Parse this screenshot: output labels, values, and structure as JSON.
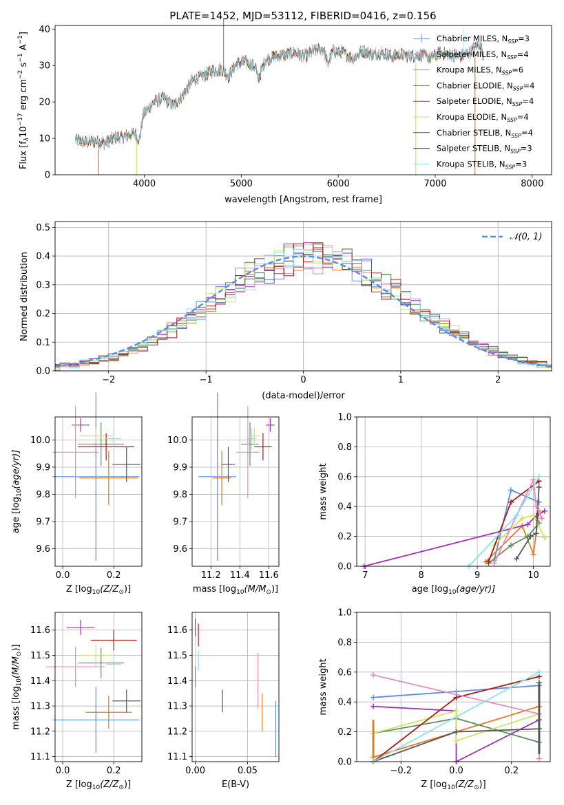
{
  "figure": {
    "title": "PLATE=1452, MJD=53112, FIBERID=0416, z=0.156"
  },
  "palette": [
    "#5b8ee0",
    "#e07b28",
    "#5e8e5b",
    "#9b32b4",
    "#cde468",
    "#555555",
    "#a81a12",
    "#e58cbe",
    "#8be2e6"
  ],
  "models": [
    {
      "label": "Chabrier MILES, N",
      "sub": "SSP",
      "eq": "=3",
      "color": "#5b8ee0"
    },
    {
      "label": "Salpeter MILES, N",
      "sub": "SSP",
      "eq": "=4",
      "color": "#e58cbe"
    },
    {
      "label": "Kroupa MILES, N",
      "sub": "SSP",
      "eq": "=6",
      "color": "#e07b28"
    },
    {
      "label": "Chabrier ELODIE, N",
      "sub": "SSP",
      "eq": "=4",
      "color": "#5e8e5b"
    },
    {
      "label": "Salpeter ELODIE, N",
      "sub": "SSP",
      "eq": "=4",
      "color": "#9b32b4"
    },
    {
      "label": "Kroupa ELODIE, N",
      "sub": "SSP",
      "eq": "=4",
      "color": "#cde468"
    },
    {
      "label": "Chabrier STELIB, N",
      "sub": "SSP",
      "eq": "=4",
      "color": "#555555"
    },
    {
      "label": "Salpeter STELIB, N",
      "sub": "SSP",
      "eq": "=3",
      "color": "#a81a12"
    },
    {
      "label": "Kroupa STELIB, N",
      "sub": "SSP",
      "eq": "=3",
      "color": "#8be2e6"
    }
  ],
  "chart_data": [
    {
      "id": "spectrum",
      "type": "line",
      "xlabel": "wavelength [Angstrom, rest frame]",
      "ylabel": "Flux [f",
      "ylabel_rest": "10",
      "ylabel_exp": "−17",
      "ylabel_tail": " erg cm",
      "ylabel_exp2": "−2",
      "ylabel_tail2": " s",
      "ylabel_exp3": "−1",
      "ylabel_tail3": " A",
      "ylabel_exp4": "−1",
      "ylabel_end": "]",
      "xlim": [
        3080,
        8200
      ],
      "ylim": [
        0,
        41
      ],
      "xticks": [
        "4000",
        "5000",
        "6000",
        "7000",
        "8000"
      ],
      "xtick_values": [
        4000,
        5000,
        6000,
        7000,
        8000
      ],
      "yticks": [
        "0",
        "10",
        "20",
        "30",
        "40"
      ],
      "ytick_values": [
        0,
        10,
        20,
        30,
        40
      ],
      "grid": false,
      "legend_position": "top-right",
      "envelope": [
        [
          3290,
          9.6
        ],
        [
          3400,
          9.0
        ],
        [
          3500,
          9.2
        ],
        [
          3600,
          8.8
        ],
        [
          3700,
          10.2
        ],
        [
          3800,
          10.5
        ],
        [
          3900,
          11.5
        ],
        [
          3950,
          9.5
        ],
        [
          3990,
          16.5
        ],
        [
          4100,
          20.0
        ],
        [
          4200,
          21.0
        ],
        [
          4300,
          19.0
        ],
        [
          4400,
          22.0
        ],
        [
          4500,
          26.0
        ],
        [
          4600,
          27.0
        ],
        [
          4700,
          28.5
        ],
        [
          4800,
          29.0
        ],
        [
          4870,
          27.0
        ],
        [
          4950,
          30.5
        ],
        [
          5050,
          31.0
        ],
        [
          5150,
          29.5
        ],
        [
          5170,
          26.0
        ],
        [
          5250,
          31.5
        ],
        [
          5350,
          32.5
        ],
        [
          5450,
          33.0
        ],
        [
          5550,
          33.5
        ],
        [
          5650,
          32.5
        ],
        [
          5750,
          34.0
        ],
        [
          5850,
          34.5
        ],
        [
          5890,
          30.5
        ],
        [
          5950,
          34.0
        ],
        [
          6050,
          33.5
        ],
        [
          6150,
          32.0
        ],
        [
          6250,
          34.0
        ],
        [
          6350,
          33.0
        ],
        [
          6450,
          33.5
        ],
        [
          6550,
          32.5
        ],
        [
          6650,
          33.0
        ],
        [
          6750,
          32.5
        ],
        [
          6850,
          33.0
        ],
        [
          6950,
          32.0
        ],
        [
          7050,
          33.5
        ],
        [
          7150,
          33.0
        ],
        [
          7250,
          32.5
        ],
        [
          7350,
          33.5
        ],
        [
          7450,
          36.0
        ],
        [
          7500,
          33.0
        ]
      ],
      "dropouts": [
        {
          "x": 3530,
          "to": 0,
          "color": "#e07b28"
        },
        {
          "x": 3920,
          "to": 0,
          "color": "#cde468"
        },
        {
          "x": 6800,
          "to": 0,
          "color": "#cde468"
        },
        {
          "x": 7410,
          "to": 0,
          "color": "#e07b28"
        }
      ]
    },
    {
      "id": "residuals",
      "type": "histogram",
      "xlabel": "(data-model)/error",
      "ylabel": "Normed distribution",
      "xlim": [
        -2.55,
        2.55
      ],
      "ylim": [
        0,
        0.52
      ],
      "xticks": [
        "−2",
        "−1",
        "0",
        "1",
        "2"
      ],
      "xtick_values": [
        -2,
        -1,
        0,
        1,
        2
      ],
      "yticks": [
        "0.0",
        "0.1",
        "0.2",
        "0.3",
        "0.4",
        "0.5"
      ],
      "ytick_values": [
        0,
        0.1,
        0.2,
        0.3,
        0.4,
        0.5
      ],
      "grid": true,
      "legend_position": "top-right",
      "reference_label": "𝒩(0, 1)",
      "reference_color": "#5b8ee0",
      "bin_width": 0.1
    },
    {
      "id": "age-vs-Z",
      "type": "errorbar",
      "xlabel": "Z [log",
      "xlabel_sub": "10",
      "xlabel_rest": "(Z/Z",
      "xlabel_sub2": "⊙",
      "xlabel_end": ")]",
      "ylabel": "age  [log",
      "ylabel_sub": "10",
      "ylabel_rest": "(age/yr)]",
      "xlim": [
        -0.03,
        0.31
      ],
      "ylim": [
        9.535,
        10.085
      ],
      "xticks": [
        "0.0",
        "0.2"
      ],
      "xtick_values": [
        0.0,
        0.2
      ],
      "yticks": [
        "9.6",
        "9.7",
        "9.8",
        "9.9",
        "10.0"
      ],
      "ytick_values": [
        9.6,
        9.7,
        9.8,
        9.9,
        10.0
      ],
      "grid": true,
      "points": [
        {
          "x": 0.13,
          "xerr": 0.17,
          "y": 9.865,
          "yerr": 0.31,
          "color": "#5b8ee0"
        },
        {
          "x": 0.18,
          "xerr": 0.115,
          "y": 9.86,
          "yerr": 0.1,
          "color": "#e07b28"
        },
        {
          "x": 0.15,
          "xerr": 0.09,
          "y": 9.985,
          "yerr": 0.08,
          "color": "#5e8e5b"
        },
        {
          "x": 0.07,
          "xerr": 0.035,
          "y": 10.055,
          "yerr": 0.025,
          "color": "#9b32b4"
        },
        {
          "x": 0.13,
          "xerr": 0.065,
          "y": 10.015,
          "yerr": 0.03,
          "color": "#cde468"
        },
        {
          "x": 0.25,
          "xerr": 0.055,
          "y": 9.91,
          "yerr": 0.065,
          "color": "#555555"
        },
        {
          "x": 0.17,
          "xerr": 0.11,
          "y": 9.975,
          "yerr": 0.05,
          "color": "#a81a12"
        },
        {
          "x": 0.05,
          "xerr": 0.09,
          "y": 9.955,
          "yerr": 0.17,
          "color": "#e58cbe"
        },
        {
          "x": 0.2,
          "xerr": 0.03,
          "y": 10.005,
          "yerr": 0.03,
          "color": "#8be2e6"
        }
      ]
    },
    {
      "id": "age-vs-mass",
      "type": "errorbar",
      "xlabel": "mass [log",
      "xlabel_sub": "10",
      "xlabel_rest": "(M/M",
      "xlabel_sub2": "⊙",
      "xlabel_end": ")]",
      "xlim": [
        11.07,
        11.67
      ],
      "ylim": [
        9.535,
        10.085
      ],
      "xticks": [
        "11.2",
        "11.4",
        "11.6"
      ],
      "xtick_values": [
        11.2,
        11.4,
        11.6
      ],
      "yticks": [
        "9.6",
        "9.7",
        "9.8",
        "9.9",
        "10.0"
      ],
      "ytick_values": [
        9.6,
        9.7,
        9.8,
        9.9,
        10.0
      ],
      "grid": true,
      "points": [
        {
          "x": 11.245,
          "xerr": 0.13,
          "y": 9.865,
          "yerr": 0.31,
          "color": "#5b8ee0"
        },
        {
          "x": 11.275,
          "xerr": 0.065,
          "y": 9.86,
          "yerr": 0.1,
          "color": "#e07b28"
        },
        {
          "x": 11.47,
          "xerr": 0.06,
          "y": 9.985,
          "yerr": 0.08,
          "color": "#5e8e5b"
        },
        {
          "x": 11.61,
          "xerr": 0.03,
          "y": 10.055,
          "yerr": 0.025,
          "color": "#9b32b4"
        },
        {
          "x": 11.5,
          "xerr": 0.04,
          "y": 10.015,
          "yerr": 0.03,
          "color": "#cde468"
        },
        {
          "x": 11.32,
          "xerr": 0.045,
          "y": 9.91,
          "yerr": 0.065,
          "color": "#555555"
        },
        {
          "x": 11.56,
          "xerr": 0.06,
          "y": 9.975,
          "yerr": 0.05,
          "color": "#a81a12"
        },
        {
          "x": 11.455,
          "xerr": 0.08,
          "y": 9.955,
          "yerr": 0.17,
          "color": "#e58cbe"
        },
        {
          "x": 11.48,
          "xerr": 0.03,
          "y": 10.005,
          "yerr": 0.04,
          "color": "#8be2e6"
        }
      ]
    },
    {
      "id": "weight-vs-age",
      "type": "line",
      "xlabel": "age  [log",
      "xlabel_sub": "10",
      "xlabel_rest": "(age/yr)]",
      "ylabel": "mass weight",
      "xlim": [
        6.85,
        10.3
      ],
      "ylim": [
        0,
        1.0
      ],
      "xticks": [
        "7",
        "8",
        "9",
        "10"
      ],
      "xtick_values": [
        7,
        8,
        9,
        10
      ],
      "yticks": [
        "0.0",
        "0.2",
        "0.4",
        "0.6",
        "0.8",
        "1.0"
      ],
      "ytick_values": [
        0,
        0.2,
        0.4,
        0.6,
        0.8,
        1.0
      ],
      "grid": true,
      "series": [
        {
          "color": "#5b8ee0",
          "x": [
            9.3,
            9.6,
            10.1
          ],
          "y": [
            0.04,
            0.51,
            0.43
          ]
        },
        {
          "color": "#e07b28",
          "x": [
            9.15,
            9.8,
            10.0,
            10.1
          ],
          "y": [
            0.03,
            0.27,
            0.08,
            0.37
          ]
        },
        {
          "color": "#5e8e5b",
          "x": [
            9.2,
            9.6,
            9.9,
            10.1
          ],
          "y": [
            0.02,
            0.14,
            0.2,
            0.29
          ]
        },
        {
          "color": "#9b32b4",
          "x": [
            6.98,
            9.9,
            10.05,
            10.2
          ],
          "y": [
            0.0,
            0.28,
            0.34,
            0.37
          ]
        },
        {
          "color": "#cde468",
          "x": [
            9.3,
            9.8,
            10.0,
            10.2
          ],
          "y": [
            0.14,
            0.32,
            0.34,
            0.19
          ]
        },
        {
          "color": "#555555",
          "x": [
            9.7,
            9.95,
            10.05,
            10.1
          ],
          "y": [
            0.05,
            0.2,
            0.22,
            0.53
          ]
        },
        {
          "color": "#a81a12",
          "x": [
            9.2,
            9.6,
            10.1
          ],
          "y": [
            0.03,
            0.43,
            0.57
          ]
        },
        {
          "color": "#e58cbe",
          "x": [
            9.3,
            10.0,
            10.05,
            10.15
          ],
          "y": [
            0.02,
            0.58,
            0.4,
            0.32
          ]
        },
        {
          "color": "#8be2e6",
          "x": [
            8.85,
            9.7,
            10.1
          ],
          "y": [
            0.0,
            0.34,
            0.6
          ]
        }
      ]
    },
    {
      "id": "mass-vs-Z",
      "type": "errorbar",
      "xlabel": "Z [log",
      "xlabel_sub": "10",
      "xlabel_rest": "(Z/Z",
      "xlabel_sub2": "⊙",
      "xlabel_end": ")]",
      "ylabel": "mass [log",
      "ylabel_sub": "10",
      "ylabel_rest": "(M/M",
      "ylabel_sub2": "⊙",
      "ylabel_end": ")]",
      "xlim": [
        -0.03,
        0.31
      ],
      "ylim": [
        11.08,
        11.67
      ],
      "xticks": [
        "0.0",
        "0.2"
      ],
      "xtick_values": [
        0.0,
        0.2
      ],
      "yticks": [
        "11.1",
        "11.2",
        "11.3",
        "11.4",
        "11.5",
        "11.6"
      ],
      "ytick_values": [
        11.1,
        11.2,
        11.3,
        11.4,
        11.5,
        11.6
      ],
      "grid": true,
      "points": [
        {
          "x": 0.13,
          "xerr": 0.17,
          "y": 11.245,
          "yerr": 0.13,
          "color": "#5b8ee0"
        },
        {
          "x": 0.18,
          "xerr": 0.09,
          "y": 11.275,
          "yerr": 0.065,
          "color": "#e07b28"
        },
        {
          "x": 0.15,
          "xerr": 0.09,
          "y": 11.47,
          "yerr": 0.06,
          "color": "#5e8e5b"
        },
        {
          "x": 0.07,
          "xerr": 0.055,
          "y": 11.61,
          "yerr": 0.03,
          "color": "#9b32b4"
        },
        {
          "x": 0.13,
          "xerr": 0.065,
          "y": 11.5,
          "yerr": 0.045,
          "color": "#cde468"
        },
        {
          "x": 0.25,
          "xerr": 0.055,
          "y": 11.32,
          "yerr": 0.045,
          "color": "#555555"
        },
        {
          "x": 0.2,
          "xerr": 0.09,
          "y": 11.56,
          "yerr": 0.04,
          "color": "#a81a12"
        },
        {
          "x": 0.05,
          "xerr": 0.115,
          "y": 11.455,
          "yerr": 0.08,
          "color": "#e58cbe"
        },
        {
          "x": 0.2,
          "xerr": 0.03,
          "y": 11.465,
          "yerr": 0.03,
          "color": "#8be2e6"
        }
      ]
    },
    {
      "id": "mass-vs-ebv",
      "type": "errorbar",
      "xlabel": "E(B-V)",
      "xlim": [
        -0.003,
        0.08
      ],
      "ylim": [
        11.08,
        11.67
      ],
      "xticks": [
        "0.00",
        "0.05"
      ],
      "xtick_values": [
        0.0,
        0.05
      ],
      "yticks": [
        "11.1",
        "11.2",
        "11.3",
        "11.4",
        "11.5",
        "11.6"
      ],
      "ytick_values": [
        11.1,
        11.2,
        11.3,
        11.4,
        11.5,
        11.6
      ],
      "grid": true,
      "points": [
        {
          "x": 0.077,
          "xerr": 0,
          "y": 11.21,
          "yerr": 0.11,
          "color": "#5b8ee0"
        },
        {
          "x": 0.064,
          "xerr": 0,
          "y": 11.275,
          "yerr": 0.075,
          "color": "#e07b28"
        },
        {
          "x": 0.0,
          "xerr": 0,
          "y": 11.435,
          "yerr": 0.06,
          "color": "#5e8e5b"
        },
        {
          "x": 0.0,
          "xerr": 0,
          "y": 11.61,
          "yerr": 0.035,
          "color": "#9b32b4"
        },
        {
          "x": 0.0,
          "xerr": 0,
          "y": 11.5,
          "yerr": 0.045,
          "color": "#cde468"
        },
        {
          "x": 0.026,
          "xerr": 0,
          "y": 11.32,
          "yerr": 0.045,
          "color": "#555555"
        },
        {
          "x": 0.003,
          "xerr": 0,
          "y": 11.58,
          "yerr": 0.045,
          "color": "#a81a12"
        },
        {
          "x": 0.06,
          "xerr": 0,
          "y": 11.4,
          "yerr": 0.11,
          "color": "#e58cbe"
        },
        {
          "x": 0.003,
          "xerr": 0,
          "y": 11.48,
          "yerr": 0.04,
          "color": "#8be2e6"
        }
      ]
    },
    {
      "id": "weight-vs-Z",
      "type": "line",
      "xlabel": "Z [log",
      "xlabel_sub": "10",
      "xlabel_rest": "(Z/Z",
      "xlabel_sub2": "⊙",
      "xlabel_end": ")]",
      "ylabel": "mass weight",
      "xlim": [
        -0.36,
        0.34
      ],
      "ylim": [
        0,
        1.0
      ],
      "xticks": [
        "−0.2",
        "0.0",
        "0.2"
      ],
      "xtick_values": [
        -0.2,
        0.0,
        0.2
      ],
      "yticks": [
        "0.0",
        "0.2",
        "0.4",
        "0.6",
        "0.8",
        "1.0"
      ],
      "ytick_values": [
        0,
        0.2,
        0.4,
        0.6,
        0.8,
        1.0
      ],
      "grid": true,
      "series": [
        {
          "color": "#5b8ee0",
          "x": [
            -0.3,
            0.0,
            0.3
          ],
          "y": [
            0.43,
            0.47,
            0.51
          ]
        },
        {
          "color": "#e07b28",
          "x": [
            -0.3,
            0.0,
            0.3
          ],
          "y": [
            0.03,
            0.2,
            0.37
          ]
        },
        {
          "color": "#5e8e5b",
          "x": [
            -0.3,
            0.0,
            0.3
          ],
          "y": [
            0.19,
            0.29,
            0.13
          ]
        },
        {
          "color": "#9b32b4",
          "x": [
            -0.3,
            0.0,
            0.0,
            0.3
          ],
          "y": [
            0.37,
            0.34,
            0.0,
            0.28
          ]
        },
        {
          "color": "#cde468",
          "x": [
            -0.3,
            0.0,
            0.0,
            0.3
          ],
          "y": [
            0.19,
            0.34,
            0.14,
            0.32
          ]
        },
        {
          "color": "#555555",
          "x": [
            -0.3,
            0.0,
            0.3,
            0.3
          ],
          "y": [
            0.0,
            0.2,
            0.22,
            0.53
          ]
        },
        {
          "color": "#a81a12",
          "x": [
            -0.3,
            0.0,
            0.3
          ],
          "y": [
            0.0,
            0.43,
            0.57
          ]
        },
        {
          "color": "#e58cbe",
          "x": [
            -0.3,
            0.3,
            0.3
          ],
          "y": [
            0.58,
            0.32,
            0.02
          ]
        },
        {
          "color": "#8be2e6",
          "x": [
            -0.3,
            0.3
          ],
          "y": [
            0.0,
            0.6
          ]
        }
      ],
      "stacks": [
        {
          "x": -0.3,
          "y": [
            0.03,
            0.28
          ],
          "color": "#e07b28"
        },
        {
          "x": 0.3,
          "y": [
            0.05,
            0.53
          ],
          "color": "#555555"
        }
      ]
    }
  ]
}
